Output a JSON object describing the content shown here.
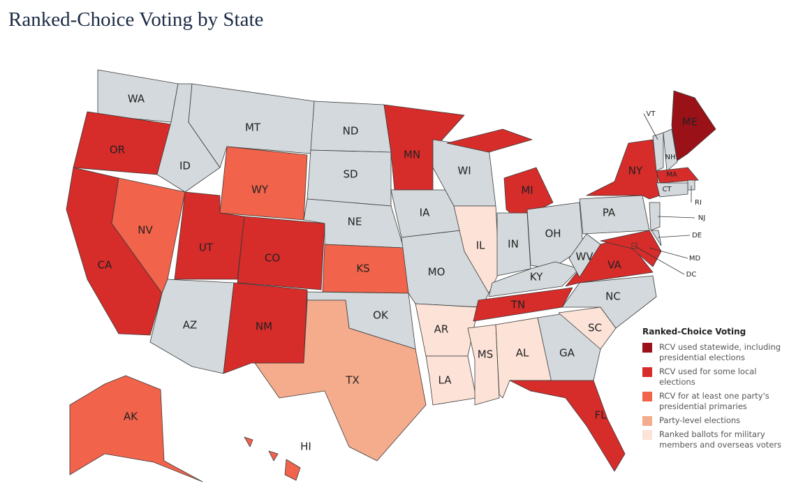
{
  "title": "Ranked-Choice Voting by State",
  "legend": {
    "title": "Ranked-Choice Voting",
    "items": [
      {
        "label": "RCV used statewide, including presidential elections",
        "color": "#9b1118"
      },
      {
        "label": "RCV used for some local elections",
        "color": "#d62c2a"
      },
      {
        "label": "RCV for at least one party's presidential primaries",
        "color": "#f1634a"
      },
      {
        "label": "Party-level elections",
        "color": "#f5ac8d"
      },
      {
        "label": "Ranked ballots for military members and overseas voters",
        "color": "#fce2d7"
      }
    ]
  },
  "default_color": "#d3d9dc",
  "states": [
    {
      "abbr": "WA",
      "category": null
    },
    {
      "abbr": "OR",
      "category": 1
    },
    {
      "abbr": "CA",
      "category": 1
    },
    {
      "abbr": "NV",
      "category": 2
    },
    {
      "abbr": "ID",
      "category": null
    },
    {
      "abbr": "MT",
      "category": null
    },
    {
      "abbr": "WY",
      "category": 2
    },
    {
      "abbr": "UT",
      "category": 1
    },
    {
      "abbr": "CO",
      "category": 1
    },
    {
      "abbr": "AZ",
      "category": null
    },
    {
      "abbr": "NM",
      "category": 1
    },
    {
      "abbr": "ND",
      "category": null
    },
    {
      "abbr": "SD",
      "category": null
    },
    {
      "abbr": "NE",
      "category": null
    },
    {
      "abbr": "KS",
      "category": 2
    },
    {
      "abbr": "OK",
      "category": null
    },
    {
      "abbr": "TX",
      "category": 3
    },
    {
      "abbr": "MN",
      "category": 1
    },
    {
      "abbr": "IA",
      "category": null
    },
    {
      "abbr": "MO",
      "category": null
    },
    {
      "abbr": "AR",
      "category": 4
    },
    {
      "abbr": "LA",
      "category": 4
    },
    {
      "abbr": "WI",
      "category": null
    },
    {
      "abbr": "IL",
      "category": 4
    },
    {
      "abbr": "MI",
      "category": 1
    },
    {
      "abbr": "IN",
      "category": null
    },
    {
      "abbr": "OH",
      "category": null
    },
    {
      "abbr": "KY",
      "category": null
    },
    {
      "abbr": "TN",
      "category": 1
    },
    {
      "abbr": "MS",
      "category": 4
    },
    {
      "abbr": "AL",
      "category": 4
    },
    {
      "abbr": "GA",
      "category": null
    },
    {
      "abbr": "FL",
      "category": 1
    },
    {
      "abbr": "SC",
      "category": 4
    },
    {
      "abbr": "NC",
      "category": null
    },
    {
      "abbr": "VA",
      "category": 1
    },
    {
      "abbr": "WV",
      "category": null
    },
    {
      "abbr": "PA",
      "category": null
    },
    {
      "abbr": "NY",
      "category": 1
    },
    {
      "abbr": "ME",
      "category": 0
    },
    {
      "abbr": "VT",
      "category": null
    },
    {
      "abbr": "NH",
      "category": null
    },
    {
      "abbr": "MA",
      "category": 1
    },
    {
      "abbr": "RI",
      "category": null
    },
    {
      "abbr": "CT",
      "category": null
    },
    {
      "abbr": "NJ",
      "category": null
    },
    {
      "abbr": "DE",
      "category": null
    },
    {
      "abbr": "MD",
      "category": 1
    },
    {
      "abbr": "DC",
      "category": 1
    },
    {
      "abbr": "AK",
      "category": 2
    },
    {
      "abbr": "HI",
      "category": 2
    }
  ]
}
